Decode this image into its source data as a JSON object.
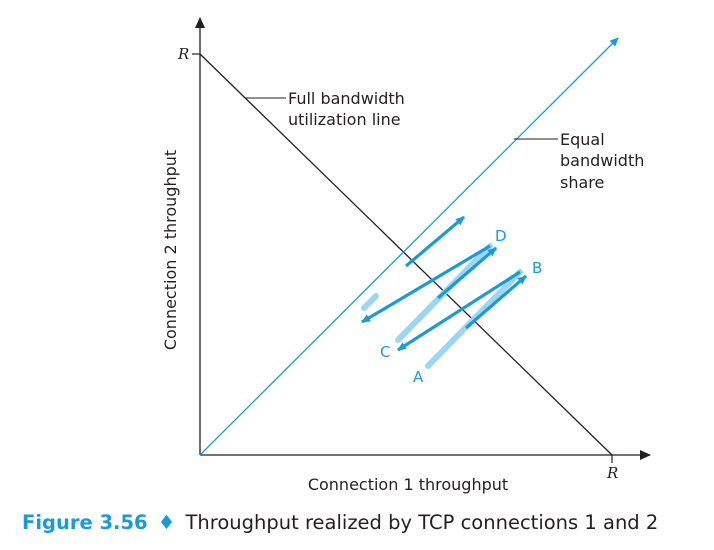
{
  "axes": {
    "x_label": "Connection 1 throughput",
    "y_label": "Connection 2 throughput",
    "x_max_label": "R",
    "y_max_label": "R"
  },
  "lines": {
    "full_bandwidth": [
      "Full bandwidth",
      "utilization line"
    ],
    "equal_share": [
      "Equal",
      "bandwidth",
      "share"
    ]
  },
  "points": {
    "A": "A",
    "B": "B",
    "C": "C",
    "D": "D"
  },
  "caption": {
    "number": "Figure 3.56",
    "separator": "♦",
    "text": "Throughput realized by TCP connections 1 and 2"
  },
  "colors": {
    "accent": "#1a9ad6",
    "light_accent": "#9dd6f2",
    "ink": "#231f20"
  }
}
